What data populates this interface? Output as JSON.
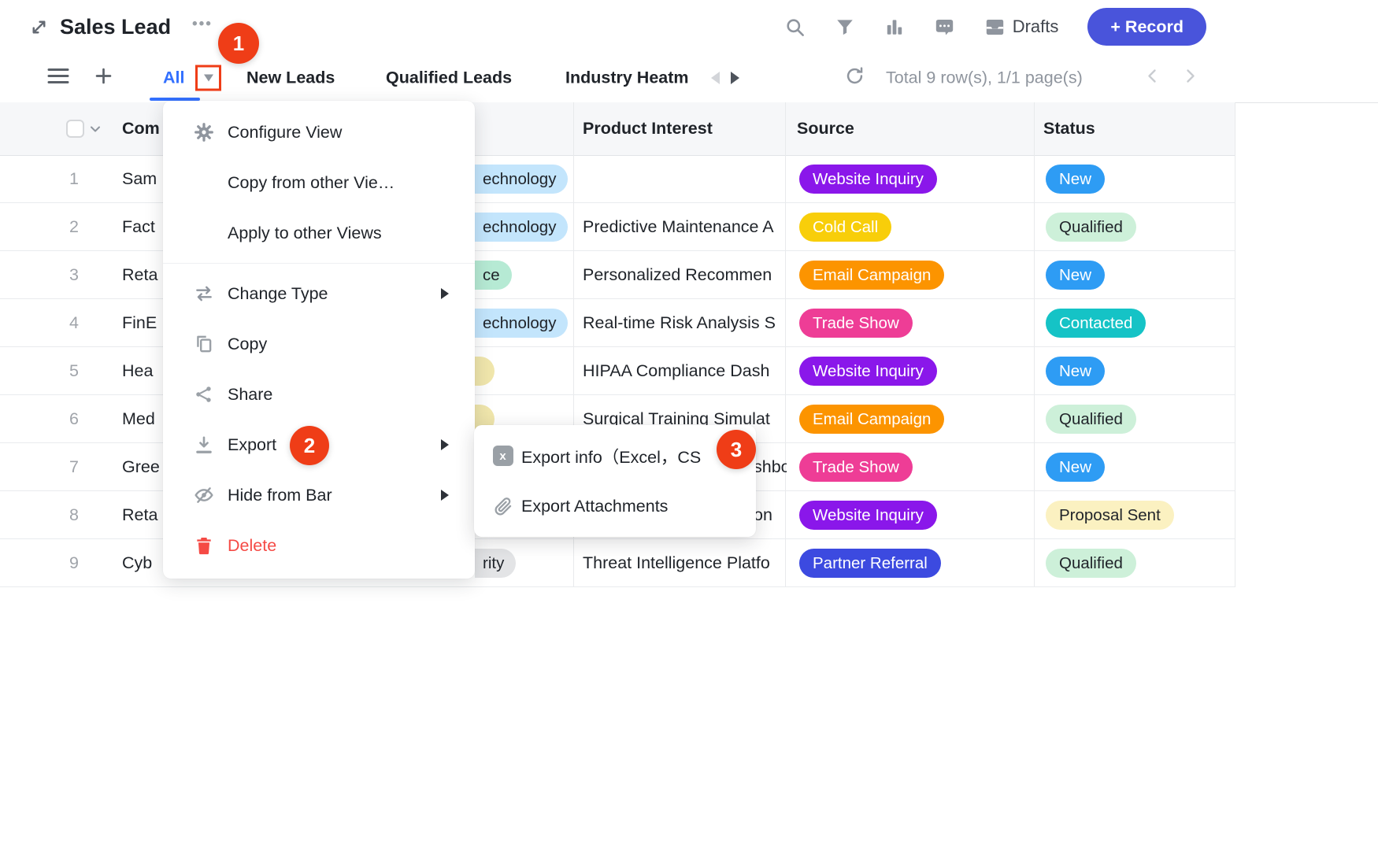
{
  "header": {
    "title": "Sales Lead",
    "more_menu": "•••",
    "drafts_label": "Drafts",
    "record_button_label": "+ Record"
  },
  "toolbar": {
    "tabs": [
      {
        "label": "All",
        "active": true,
        "has_dropdown": true
      },
      {
        "label": "New Leads"
      },
      {
        "label": "Qualified Leads"
      },
      {
        "label": "Industry Heatm",
        "faded": true
      }
    ],
    "summary": "Total 9 row(s), 1/1 page(s)"
  },
  "annotations": {
    "badges": [
      "1",
      "2",
      "3"
    ]
  },
  "view_menu": {
    "items": [
      {
        "label": "Configure View",
        "icon": "gear"
      },
      {
        "label": "Copy from other Vie…"
      },
      {
        "label": "Apply to other Views",
        "divider_after": true
      },
      {
        "label": "Change Type",
        "icon": "swap",
        "has_submenu": true
      },
      {
        "label": "Copy",
        "icon": "copy"
      },
      {
        "label": "Share",
        "icon": "share"
      },
      {
        "label": "Export",
        "icon": "download",
        "has_submenu": true,
        "badge": "2"
      },
      {
        "label": "Hide from Bar",
        "icon": "eye-off",
        "has_submenu": true
      },
      {
        "label": "Delete",
        "icon": "trash",
        "danger": true
      }
    ]
  },
  "export_submenu": {
    "items": [
      {
        "label": "Export info（Excel，CS",
        "icon": "excel",
        "badge": "3"
      },
      {
        "label": "Export Attachments",
        "icon": "paperclip"
      }
    ]
  },
  "table": {
    "columns": {
      "company": "Com",
      "product_interest": "Product Interest",
      "source": "Source",
      "status": "Status"
    },
    "rows": [
      {
        "num": "1",
        "company": "Sam",
        "industry": {
          "text": "echnology",
          "bg": "#c3e5fc",
          "fg": "#1f2329"
        },
        "product": "",
        "source": {
          "label": "Website Inquiry",
          "bg": "#8a17ea",
          "fg": "#ffffff"
        },
        "status": {
          "label": "New",
          "bg": "#2e9cf4",
          "fg": "#ffffff"
        }
      },
      {
        "num": "2",
        "company": "Fact",
        "industry": {
          "text": "echnology",
          "bg": "#c3e5fc",
          "fg": "#1f2329"
        },
        "product": "Predictive Maintenance A",
        "source": {
          "label": "Cold Call",
          "bg": "#f8ce0a",
          "fg": "#ffffff"
        },
        "status": {
          "label": "Qualified",
          "bg": "#cdf0d9",
          "fg": "#1f2329"
        }
      },
      {
        "num": "3",
        "company": "Reta",
        "industry": {
          "text": "ce",
          "bg": "#b6ead4",
          "fg": "#1f2329"
        },
        "product": "Personalized Recommen",
        "source": {
          "label": "Email Campaign",
          "bg": "#fc9400",
          "fg": "#ffffff"
        },
        "status": {
          "label": "New",
          "bg": "#2e9cf4",
          "fg": "#ffffff"
        }
      },
      {
        "num": "4",
        "company": "FinE",
        "industry": {
          "text": "echnology",
          "bg": "#c3e5fc",
          "fg": "#1f2329"
        },
        "product": "Real-time Risk Analysis S",
        "source": {
          "label": "Trade Show",
          "bg": "#ee3d96",
          "fg": "#ffffff"
        },
        "status": {
          "label": "Contacted",
          "bg": "#15c3c6",
          "fg": "#ffffff"
        }
      },
      {
        "num": "5",
        "company": "Hea",
        "industry": {
          "text": "",
          "bg": "#f0e6ac",
          "fg": "#1f2329"
        },
        "product": "HIPAA Compliance Dash",
        "source": {
          "label": "Website Inquiry",
          "bg": "#8a17ea",
          "fg": "#ffffff"
        },
        "status": {
          "label": "New",
          "bg": "#2e9cf4",
          "fg": "#ffffff"
        }
      },
      {
        "num": "6",
        "company": "Med",
        "industry": {
          "text": "",
          "bg": "#f0e6ac",
          "fg": "#1f2329"
        },
        "product": "Surgical Training Simulat",
        "source": {
          "label": "Email Campaign",
          "bg": "#fc9400",
          "fg": "#ffffff"
        },
        "status": {
          "label": "Qualified",
          "bg": "#cdf0d9",
          "fg": "#1f2329"
        }
      },
      {
        "num": "7",
        "company": "Gree",
        "industry": null,
        "product": "",
        "product_fragment": "shbo",
        "source": {
          "label": "Trade Show",
          "bg": "#ee3d96",
          "fg": "#ffffff"
        },
        "status": {
          "label": "New",
          "bg": "#2e9cf4",
          "fg": "#ffffff"
        }
      },
      {
        "num": "8",
        "company": "Reta",
        "industry": null,
        "product": "",
        "product_fragment": "on",
        "source": {
          "label": "Website Inquiry",
          "bg": "#8a17ea",
          "fg": "#ffffff"
        },
        "status": {
          "label": "Proposal Sent",
          "bg": "#fbf1c1",
          "fg": "#1f2329"
        }
      },
      {
        "num": "9",
        "company": "Cyb",
        "industry": {
          "text": "rity",
          "bg": "#e3e4e6",
          "fg": "#1f2329"
        },
        "product": "Threat Intelligence Platfo",
        "source": {
          "label": "Partner Referral",
          "bg": "#3c4ae0",
          "fg": "#ffffff"
        },
        "status": {
          "label": "Qualified",
          "bg": "#cdf0d9",
          "fg": "#1f2329"
        }
      }
    ]
  },
  "colors": {
    "accent": "#3370ff",
    "record_button": "#4954db",
    "annotation_badge": "#ef3d17",
    "danger": "#f54a45"
  }
}
